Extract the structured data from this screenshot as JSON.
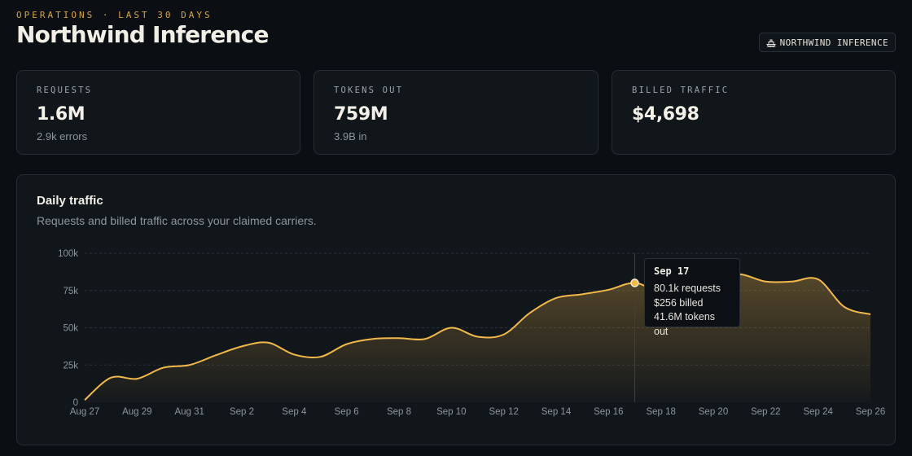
{
  "header": {
    "eyebrow": "OPERATIONS · LAST 30 DAYS",
    "title": "Northwind Inference",
    "badge_label": "NORTHWIND INFERENCE",
    "badge_icon": "ship-icon"
  },
  "stats": [
    {
      "label": "REQUESTS",
      "value": "1.6M",
      "sub": "2.9k errors"
    },
    {
      "label": "TOKENS OUT",
      "value": "759M",
      "sub": "3.9B in"
    },
    {
      "label": "BILLED TRAFFIC",
      "value": "$4,698",
      "sub": ""
    }
  ],
  "chart": {
    "title": "Daily traffic",
    "subtitle": "Requests and billed traffic across your claimed carriers.",
    "tooltip": {
      "date": "Sep 17",
      "requests": "80.1k requests",
      "billed": "$256 billed",
      "tokens": "41.6M tokens out"
    }
  },
  "colors": {
    "accent": "#f2b84b",
    "background": "#0b0f13",
    "card": "#11161b",
    "border": "#272d34",
    "muted": "#8e959d",
    "eyebrow": "#d9a441"
  },
  "chart_data": {
    "type": "area",
    "title": "Daily traffic",
    "x": [
      "Aug 27",
      "Aug 28",
      "Aug 29",
      "Aug 30",
      "Aug 31",
      "Sep 1",
      "Sep 2",
      "Sep 3",
      "Sep 4",
      "Sep 5",
      "Sep 6",
      "Sep 7",
      "Sep 8",
      "Sep 9",
      "Sep 10",
      "Sep 11",
      "Sep 12",
      "Sep 13",
      "Sep 14",
      "Sep 15",
      "Sep 16",
      "Sep 17",
      "Sep 18",
      "Sep 19",
      "Sep 20",
      "Sep 21",
      "Sep 22",
      "Sep 23",
      "Sep 24",
      "Sep 25",
      "Sep 26"
    ],
    "series": [
      {
        "name": "",
        "values": [
          1500,
          16500,
          15800,
          23200,
          25000,
          31500,
          37500,
          40000,
          32000,
          30500,
          39000,
          42500,
          43000,
          42500,
          50000,
          44000,
          45500,
          60000,
          70000,
          72500,
          75500,
          80100,
          74500,
          82500,
          83500,
          86000,
          81000,
          81000,
          82500,
          64000,
          59000
        ]
      }
    ],
    "x_tick_labels": [
      "Aug 27",
      "Aug 29",
      "Aug 31",
      "Sep 2",
      "Sep 4",
      "Sep 6",
      "Sep 8",
      "Sep 10",
      "Sep 12",
      "Sep 14",
      "Sep 16",
      "Sep 18",
      "Sep 20",
      "Sep 22",
      "Sep 24",
      "Sep 26"
    ],
    "y_ticks": [
      0,
      25000,
      50000,
      75000,
      100000
    ],
    "y_tick_labels": [
      "0",
      "25k",
      "50k",
      "75k",
      "100k"
    ],
    "ylim": [
      0,
      100000
    ],
    "highlighted_point": "Sep 17",
    "grid": "horizontal dashed",
    "legend": "none"
  }
}
